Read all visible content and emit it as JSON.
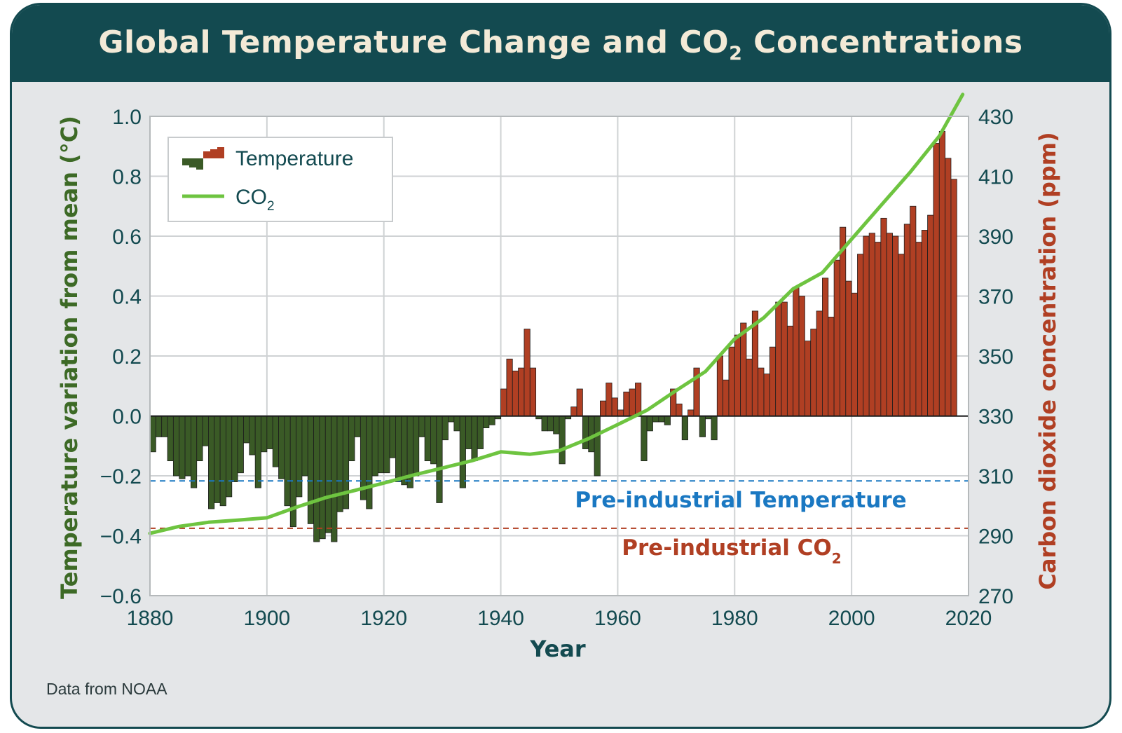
{
  "header": {
    "title_main": "Global Temperature Change and CO",
    "title_sub": "2",
    "title_tail": " Concentrations"
  },
  "source_note": "Data from NOAA",
  "colors": {
    "banner": "#134a50",
    "title_text": "#f3ead7",
    "card_background": "#e4e6e8",
    "plot_background": "#ffffff",
    "temperature_positive": "#b03f23",
    "temperature_negative": "#3a5a26",
    "co2_line": "#6ec440",
    "preindustrial_temperature_line": "#1a78c2",
    "preindustrial_co2_line": "#b03f23",
    "left_axis_label": "#3d6a26",
    "right_axis_label": "#b03f23",
    "axis_text": "#134a50"
  },
  "chart_data": {
    "type": "bar",
    "title": "Global Temperature Change and CO2 Concentrations",
    "xlabel": "Year",
    "ylabel": "Temperature variation from mean (°C)",
    "ylabel_right": "Carbon dioxide concentration (ppm)",
    "xlim": [
      1880,
      2020
    ],
    "ylim": [
      -0.6,
      1.0
    ],
    "ylim_right": [
      270,
      430
    ],
    "x_ticks": [
      "1880",
      "1900",
      "1920",
      "1940",
      "1960",
      "1980",
      "2000",
      "2020"
    ],
    "y_ticks": [
      "1.0",
      "0.8",
      "0.6",
      "0.4",
      "0.2",
      "0.0",
      "−0.2",
      "−0.4",
      "−0.6"
    ],
    "y_ticks_right": [
      "430",
      "410",
      "390",
      "370",
      "350",
      "330",
      "310",
      "290",
      "270"
    ],
    "grid": true,
    "legend": {
      "position": "top-left",
      "temperature_label": "Temperature",
      "co2_label_main": "CO",
      "co2_label_sub": "2"
    },
    "series": [
      {
        "name": "Temperature",
        "type": "bar",
        "axis": "left",
        "x_start": 1880,
        "x_step": 1,
        "values": [
          -0.12,
          -0.07,
          -0.07,
          -0.15,
          -0.2,
          -0.21,
          -0.2,
          -0.24,
          -0.15,
          -0.1,
          -0.31,
          -0.29,
          -0.3,
          -0.27,
          -0.22,
          -0.19,
          -0.09,
          -0.13,
          -0.24,
          -0.12,
          -0.11,
          -0.17,
          -0.21,
          -0.3,
          -0.37,
          -0.27,
          -0.2,
          -0.36,
          -0.42,
          -0.41,
          -0.39,
          -0.42,
          -0.32,
          -0.31,
          -0.15,
          -0.07,
          -0.28,
          -0.31,
          -0.2,
          -0.19,
          -0.19,
          -0.14,
          -0.22,
          -0.23,
          -0.24,
          -0.2,
          -0.07,
          -0.15,
          -0.16,
          -0.29,
          -0.08,
          -0.02,
          -0.05,
          -0.24,
          -0.11,
          -0.15,
          -0.11,
          -0.04,
          -0.03,
          -0.01,
          0.09,
          0.19,
          0.15,
          0.16,
          0.29,
          0.16,
          -0.01,
          -0.05,
          -0.05,
          -0.06,
          -0.16,
          -0.01,
          0.03,
          0.09,
          -0.11,
          -0.12,
          -0.2,
          0.05,
          0.11,
          0.06,
          0.02,
          0.08,
          0.09,
          0.11,
          -0.15,
          -0.05,
          -0.02,
          -0.02,
          -0.03,
          0.09,
          0.04,
          -0.08,
          0.02,
          0.16,
          -0.07,
          -0.01,
          -0.08,
          0.2,
          0.12,
          0.23,
          0.27,
          0.31,
          0.19,
          0.35,
          0.16,
          0.14,
          0.23,
          0.38,
          0.38,
          0.3,
          0.43,
          0.4,
          0.25,
          0.29,
          0.35,
          0.46,
          0.33,
          0.52,
          0.63,
          0.45,
          0.41,
          0.54,
          0.6,
          0.61,
          0.58,
          0.66,
          0.61,
          0.6,
          0.54,
          0.64,
          0.7,
          0.58,
          0.62,
          0.67,
          0.91,
          0.95,
          0.86,
          0.79
        ]
      },
      {
        "name": "CO2",
        "type": "line",
        "axis": "right",
        "x": [
          1880,
          1885,
          1890,
          1895,
          1900,
          1905,
          1910,
          1915,
          1920,
          1925,
          1930,
          1935,
          1940,
          1945,
          1950,
          1955,
          1960,
          1965,
          1970,
          1975,
          1980,
          1985,
          1990,
          1995,
          2000,
          2005,
          2010,
          2015,
          2019
        ],
        "values": [
          290.8,
          293.1,
          294.5,
          295.2,
          296.0,
          299.5,
          302.7,
          305.1,
          307.6,
          310.2,
          312.6,
          315.0,
          318.0,
          317.2,
          318.4,
          322.4,
          327.1,
          331.9,
          338.5,
          344.8,
          355.7,
          362.8,
          372.4,
          377.8,
          389.0,
          400.2,
          411.3,
          423.4,
          437.3
        ]
      }
    ],
    "annotations": [
      {
        "label": "Pre-industrial Temperature",
        "axis": "left",
        "value": -0.217,
        "style": "dashed"
      },
      {
        "label_main": "Pre-industrial CO",
        "label_sub": "2",
        "axis": "right",
        "value": 292.5,
        "style": "dashed"
      }
    ]
  }
}
